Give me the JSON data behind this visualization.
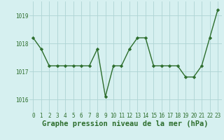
{
  "x": [
    0,
    1,
    2,
    3,
    4,
    5,
    6,
    7,
    8,
    9,
    10,
    11,
    12,
    13,
    14,
    15,
    16,
    17,
    18,
    19,
    20,
    21,
    22,
    23
  ],
  "y": [
    1018.2,
    1017.8,
    1017.2,
    1017.2,
    1017.2,
    1017.2,
    1017.2,
    1017.2,
    1017.8,
    1016.1,
    1017.2,
    1017.2,
    1017.8,
    1018.2,
    1018.2,
    1017.2,
    1017.2,
    1017.2,
    1017.2,
    1016.8,
    1016.8,
    1017.2,
    1018.2,
    1019.2
  ],
  "line_color": "#2d6e2d",
  "marker": "D",
  "marker_size": 2.2,
  "background_color": "#d6f0f0",
  "grid_color": "#aed4d4",
  "xlabel": "Graphe pression niveau de la mer (hPa)",
  "xlabel_fontsize": 7.5,
  "yticks": [
    1016,
    1017,
    1018,
    1019
  ],
  "xtick_labels": [
    "0",
    "1",
    "2",
    "3",
    "4",
    "5",
    "6",
    "7",
    "8",
    "9",
    "10",
    "11",
    "12",
    "13",
    "14",
    "15",
    "16",
    "17",
    "18",
    "19",
    "20",
    "21",
    "22",
    "23"
  ],
  "ylim": [
    1015.55,
    1019.5
  ],
  "xlim": [
    -0.5,
    23.5
  ],
  "tick_color": "#2d6e2d",
  "tick_fontsize": 5.5,
  "linewidth": 1.0
}
